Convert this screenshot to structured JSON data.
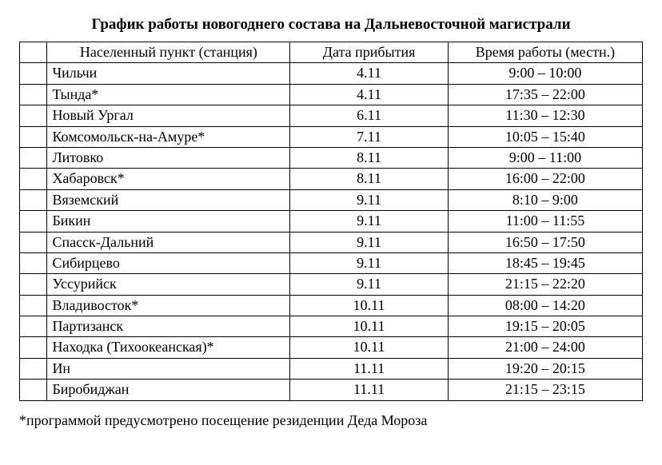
{
  "title": "График работы новогоднего состава на Дальневосточной магистрали",
  "columns": {
    "station": "Населенный пункт (станция)",
    "date": "Дата прибытия",
    "time": "Время работы (местн.)"
  },
  "rows": [
    {
      "station": "Чильчи",
      "date": "4.11",
      "time": "9:00 – 10:00"
    },
    {
      "station": "Тында*",
      "date": "4.11",
      "time": "17:35 – 22:00"
    },
    {
      "station": "Новый Ургал",
      "date": "6.11",
      "time": "11:30 – 12:30"
    },
    {
      "station": "Комсомольск-на-Амуре*",
      "date": "7.11",
      "time": "10:05 – 15:40"
    },
    {
      "station": "Литовко",
      "date": "8.11",
      "time": "9:00 – 11:00"
    },
    {
      "station": "Хабаровск*",
      "date": "8.11",
      "time": "16:00 – 22:00"
    },
    {
      "station": "Вяземский",
      "date": "9.11",
      "time": "8:10 – 9:00"
    },
    {
      "station": "Бикин",
      "date": "9.11",
      "time": "11:00 – 11:55"
    },
    {
      "station": "Спасск-Дальний",
      "date": "9.11",
      "time": "16:50 – 17:50"
    },
    {
      "station": "Сибирцево",
      "date": "9.11",
      "time": "18:45 – 19:45"
    },
    {
      "station": "Уссурийск",
      "date": "9.11",
      "time": "21:15 – 22:20"
    },
    {
      "station": "Владивосток*",
      "date": "10.11",
      "time": "08:00 – 14:20"
    },
    {
      "station": "Партизанск",
      "date": "10.11",
      "time": "19:15 – 20:05"
    },
    {
      "station": "Находка (Тихоокеанская)*",
      "date": "10.11",
      "time": "21:00 – 24:00"
    },
    {
      "station": "Ин",
      "date": "11.11",
      "time": "19:20 – 20:15"
    },
    {
      "station": "Биробиджан",
      "date": "11.11",
      "time": "21:15 – 23:15"
    }
  ],
  "footnote": "*программой предусмотрено посещение резиденции Деда Мороза"
}
